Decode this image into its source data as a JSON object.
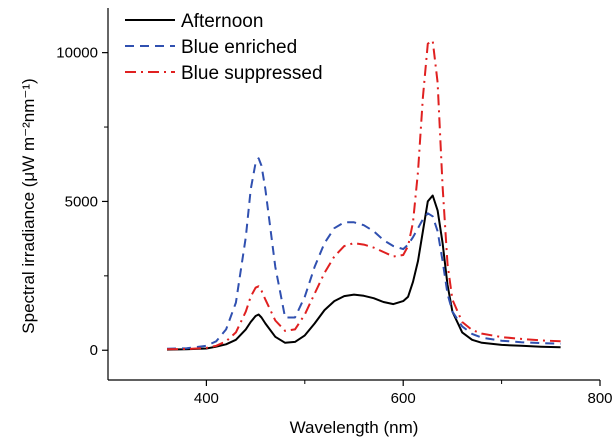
{
  "chart_data": {
    "type": "line",
    "title": "",
    "xlabel": "Wavelength (nm)",
    "ylabel": "Spectral irradiance (μW m⁻²nm⁻¹)",
    "xlim": [
      300,
      800
    ],
    "ylim": [
      -1000,
      11500
    ],
    "xticks": [
      400,
      600,
      800
    ],
    "yticks": [
      0,
      5000,
      10000
    ],
    "legend_position": "top-left",
    "grid": false,
    "x": [
      360,
      380,
      400,
      410,
      420,
      430,
      440,
      445,
      450,
      453,
      456,
      460,
      470,
      480,
      490,
      500,
      510,
      520,
      530,
      540,
      550,
      560,
      570,
      580,
      590,
      600,
      605,
      610,
      615,
      620,
      625,
      630,
      635,
      640,
      645,
      650,
      660,
      670,
      680,
      700,
      720,
      740,
      760
    ],
    "series": [
      {
        "name": "Afternoon",
        "color": "#000000",
        "dash": "solid",
        "values": [
          20,
          30,
          60,
          120,
          200,
          350,
          700,
          950,
          1150,
          1200,
          1100,
          900,
          450,
          250,
          280,
          500,
          900,
          1350,
          1650,
          1820,
          1870,
          1830,
          1750,
          1620,
          1550,
          1650,
          1800,
          2300,
          3000,
          4000,
          5000,
          5200,
          4700,
          3600,
          2200,
          1300,
          600,
          350,
          250,
          180,
          150,
          120,
          100
        ]
      },
      {
        "name": "Blue enriched",
        "color": "#3050b0",
        "dash": "dashed",
        "values": [
          50,
          70,
          150,
          300,
          700,
          1600,
          3800,
          5400,
          6300,
          6450,
          6200,
          5400,
          2800,
          1100,
          1100,
          1800,
          2800,
          3600,
          4100,
          4300,
          4300,
          4200,
          4000,
          3700,
          3500,
          3400,
          3550,
          3800,
          4100,
          4400,
          4600,
          4500,
          4000,
          3000,
          1900,
          1300,
          800,
          550,
          420,
          320,
          270,
          240,
          220
        ]
      },
      {
        "name": "Blue suppressed",
        "color": "#e02020",
        "dash": "dashdot",
        "values": [
          30,
          40,
          80,
          150,
          300,
          600,
          1300,
          1800,
          2100,
          2150,
          2000,
          1700,
          1000,
          650,
          700,
          1200,
          1900,
          2600,
          3150,
          3500,
          3600,
          3550,
          3450,
          3300,
          3150,
          3200,
          3500,
          4300,
          6000,
          8500,
          10300,
          10400,
          9000,
          5500,
          2900,
          1700,
          950,
          680,
          560,
          440,
          380,
          330,
          300
        ]
      }
    ]
  }
}
